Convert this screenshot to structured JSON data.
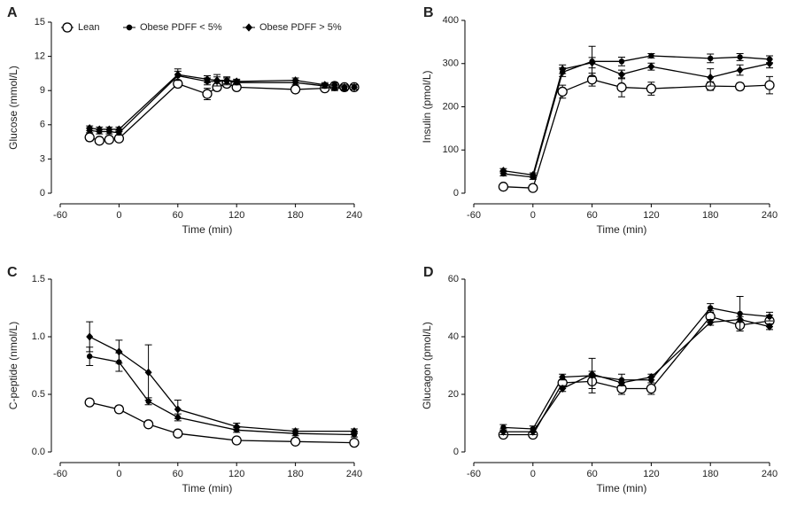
{
  "chart_data": [
    {
      "type": "line",
      "panel_label": "A",
      "x_label": "Time (min)",
      "y_label": "Glucose (mmol/L)",
      "x": [
        -30,
        -20,
        -10,
        0,
        60,
        90,
        100,
        110,
        120,
        180,
        210,
        220,
        230,
        240
      ],
      "xlim": [
        -60,
        240
      ],
      "xticks": [
        -60,
        0,
        60,
        120,
        180,
        240
      ],
      "ylim": [
        0,
        15
      ],
      "yticks": [
        0,
        3,
        6,
        9,
        12,
        15
      ],
      "series": [
        {
          "name": "Lean",
          "marker": "open-circle",
          "color": "#000000",
          "values": [
            4.9,
            4.6,
            4.7,
            4.8,
            9.6,
            8.7,
            9.3,
            9.6,
            9.3,
            9.1,
            9.2,
            9.4,
            9.3,
            9.3
          ],
          "errors": [
            0.3,
            0.2,
            0.2,
            0.2,
            0.3,
            0.5,
            0.3,
            0.3,
            0.2,
            0.2,
            0.2,
            0.2,
            0.2,
            0.2
          ]
        },
        {
          "name": "Obese PDFF < 5%",
          "marker": "dot",
          "color": "#000000",
          "values": [
            5.5,
            5.4,
            5.4,
            5.3,
            10.3,
            9.8,
            9.8,
            9.8,
            9.7,
            9.7,
            9.4,
            9.2,
            9.2,
            9.3
          ],
          "errors": [
            0.2,
            0.2,
            0.2,
            0.2,
            0.4,
            0.3,
            0.4,
            0.3,
            0.2,
            0.2,
            0.2,
            0.2,
            0.2,
            0.2
          ]
        },
        {
          "name": "Obese PDFF > 5%",
          "marker": "diamond",
          "color": "#000000",
          "values": [
            5.7,
            5.6,
            5.6,
            5.6,
            10.4,
            10.0,
            9.9,
            9.9,
            9.8,
            9.9,
            9.5,
            9.5,
            9.3,
            9.3
          ],
          "errors": [
            0.2,
            0.2,
            0.2,
            0.2,
            0.5,
            0.3,
            0.5,
            0.3,
            0.2,
            0.2,
            0.2,
            0.2,
            0.2,
            0.2
          ]
        }
      ]
    },
    {
      "type": "line",
      "panel_label": "B",
      "x_label": "Time (min)",
      "y_label": "Insulin (pmol/L)",
      "x": [
        -30,
        0,
        30,
        60,
        90,
        120,
        180,
        210,
        240
      ],
      "xlim": [
        -60,
        240
      ],
      "xticks": [
        -60,
        0,
        60,
        120,
        180,
        240
      ],
      "ylim": [
        0,
        400
      ],
      "yticks": [
        0,
        100,
        200,
        300,
        400
      ],
      "series": [
        {
          "marker": "open-circle",
          "color": "#000000",
          "values": [
            15,
            12,
            235,
            263,
            245,
            242,
            248,
            247,
            250
          ],
          "errors": [
            3,
            3,
            15,
            15,
            22,
            15,
            10,
            8,
            20
          ]
        },
        {
          "marker": "dot",
          "color": "#000000",
          "values": [
            45,
            37,
            280,
            305,
            305,
            318,
            312,
            315,
            310
          ],
          "errors": [
            5,
            5,
            10,
            35,
            10,
            5,
            10,
            8,
            8
          ]
        },
        {
          "marker": "diamond",
          "color": "#000000",
          "values": [
            52,
            42,
            287,
            302,
            275,
            293,
            268,
            285,
            300
          ],
          "errors": [
            5,
            5,
            10,
            12,
            10,
            8,
            20,
            12,
            10
          ]
        }
      ]
    },
    {
      "type": "line",
      "panel_label": "C",
      "x_label": "Time (min)",
      "y_label": "C-peptide (nmol/L)",
      "x": [
        -30,
        0,
        30,
        60,
        120,
        180,
        240
      ],
      "xlim": [
        -60,
        240
      ],
      "xticks": [
        -60,
        0,
        60,
        120,
        180,
        240
      ],
      "ylim": [
        0,
        1.5
      ],
      "yticks": [
        {
          "value": 0,
          "label": "0.0"
        },
        0.5,
        {
          "value": 1,
          "label": "1.0"
        },
        1.5
      ],
      "series": [
        {
          "marker": "open-circle",
          "color": "#000000",
          "values": [
            0.43,
            0.37,
            0.24,
            0.16,
            0.1,
            0.09,
            0.08
          ],
          "errors": [
            0.02,
            0.03,
            0.02,
            0.01,
            0.01,
            0.01,
            0.01
          ]
        },
        {
          "marker": "dot",
          "color": "#000000",
          "values": [
            0.83,
            0.78,
            0.44,
            0.3,
            0.19,
            0.16,
            0.15
          ],
          "errors": [
            0.08,
            0.08,
            0.03,
            0.03,
            0.02,
            0.02,
            0.02
          ]
        },
        {
          "marker": "diamond",
          "color": "#000000",
          "values": [
            1.0,
            0.87,
            0.69,
            0.37,
            0.22,
            0.18,
            0.18
          ],
          "errors": [
            0.13,
            0.1,
            0.24,
            0.08,
            0.03,
            0.02,
            0.02
          ]
        }
      ]
    },
    {
      "type": "line",
      "panel_label": "D",
      "x_label": "Time (min)",
      "y_label": "Glucagon (pmol/L)",
      "x": [
        -30,
        0,
        30,
        60,
        90,
        120,
        180,
        210,
        240
      ],
      "xlim": [
        -60,
        240
      ],
      "xticks": [
        -60,
        0,
        60,
        120,
        180,
        240
      ],
      "ylim": [
        0,
        60
      ],
      "yticks": [
        0,
        20,
        40,
        60
      ],
      "series": [
        {
          "marker": "open-circle",
          "color": "#000000",
          "values": [
            6,
            6,
            24,
            24.5,
            22,
            22,
            47,
            44,
            45.5
          ],
          "errors": [
            1,
            1,
            2,
            2.5,
            2,
            2,
            2,
            2,
            2
          ]
        },
        {
          "marker": "dot",
          "color": "#000000",
          "values": [
            8.5,
            8,
            26,
            26.5,
            25,
            25,
            50,
            48,
            47
          ],
          "errors": [
            1,
            1,
            1,
            6,
            2,
            1,
            1.5,
            6,
            1.5
          ]
        },
        {
          "marker": "diamond",
          "color": "#000000",
          "values": [
            7,
            7,
            22,
            27,
            24,
            26,
            45,
            46,
            43.5
          ],
          "errors": [
            1,
            1,
            1,
            1,
            1,
            1,
            1,
            1,
            1
          ]
        }
      ]
    }
  ]
}
